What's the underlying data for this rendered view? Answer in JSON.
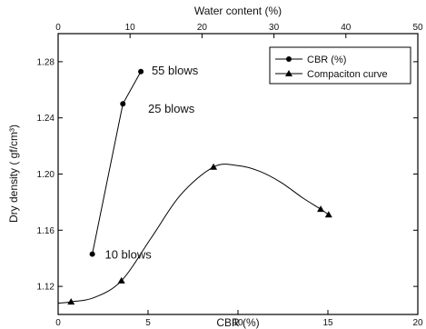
{
  "chart_data": {
    "type": "line",
    "x_bottom": {
      "label": "CBR (%)",
      "range": [
        0,
        20
      ],
      "ticks": [
        0,
        5,
        10,
        15,
        20
      ],
      "tick_labels": [
        "0",
        "5",
        "10",
        "15",
        "20"
      ]
    },
    "x_top": {
      "label": "Water content (%)",
      "range": [
        0,
        50
      ],
      "ticks": [
        0,
        10,
        20,
        30,
        40,
        50
      ],
      "tick_labels": [
        "0",
        "10",
        "20",
        "30",
        "40",
        "50"
      ]
    },
    "y": {
      "label": "Dry density ( gf/cm³)",
      "range": [
        1.1,
        1.3
      ],
      "ticks": [
        1.12,
        1.16,
        1.2,
        1.24,
        1.28
      ],
      "tick_labels": [
        "1.12",
        "1.16",
        "1.20",
        "1.24",
        "1.28"
      ]
    },
    "grid": false,
    "legend_position": "top-right",
    "series": [
      {
        "name": "CBR (%)",
        "marker": "circle",
        "x_axis": "bottom",
        "x": [
          1.9,
          3.6,
          4.6
        ],
        "y": [
          1.143,
          1.25,
          1.273
        ]
      },
      {
        "name": "Compaciton curve",
        "marker": "triangle",
        "x_axis": "top",
        "x": [
          1.8,
          8.8,
          21.6,
          36.5,
          37.6
        ],
        "y": [
          1.109,
          1.124,
          1.205,
          1.175,
          1.171
        ],
        "smooth": true,
        "curve_x": [
          0,
          1.8,
          5,
          8.8,
          13,
          17,
          21.6,
          25,
          28,
          31,
          34,
          36.5,
          37.6
        ],
        "curve_y": [
          1.108,
          1.109,
          1.112,
          1.124,
          1.155,
          1.185,
          1.205,
          1.206,
          1.202,
          1.194,
          1.183,
          1.175,
          1.171
        ]
      }
    ],
    "annotations": [
      {
        "text": "55 blows",
        "x": 5.2,
        "y": 1.274
      },
      {
        "text": "25 blows",
        "x": 5.0,
        "y": 1.247
      },
      {
        "text": "10 blows",
        "x": 2.6,
        "y": 1.143
      }
    ]
  }
}
